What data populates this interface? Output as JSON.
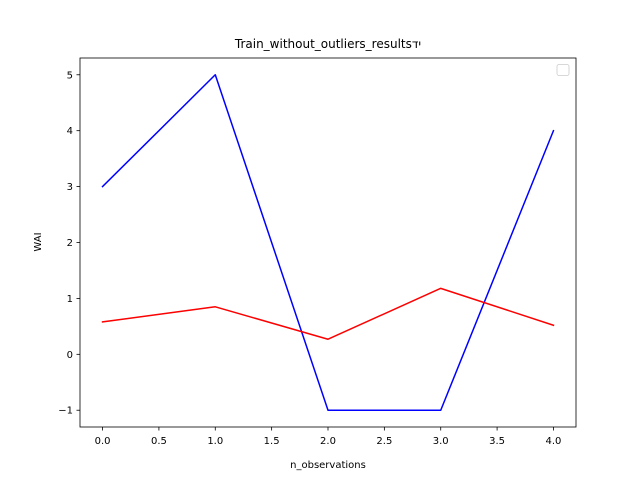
{
  "chart_data": {
    "type": "line",
    "title": "Train_without_outliers_resultsיד",
    "xlabel": "n_observations",
    "ylabel": "WAI",
    "x": [
      0,
      1,
      2,
      3,
      4
    ],
    "xlim": [
      -0.2,
      4.2
    ],
    "ylim": [
      -1.3,
      5.3
    ],
    "x_ticks": [
      0.0,
      0.5,
      1.0,
      1.5,
      2.0,
      2.5,
      3.0,
      3.5,
      4.0
    ],
    "x_tick_labels": [
      "0.0",
      "0.5",
      "1.0",
      "1.5",
      "2.0",
      "2.5",
      "3.0",
      "3.5",
      "4.0"
    ],
    "y_ticks": [
      -1,
      0,
      1,
      2,
      3,
      4,
      5
    ],
    "y_tick_labels": [
      "−1",
      "0",
      "1",
      "2",
      "3",
      "4",
      "5"
    ],
    "grid": false,
    "legend": {
      "placement": "upper-right",
      "entries": []
    },
    "series": [
      {
        "color": "#0000ff",
        "values": [
          3,
          5,
          -1,
          -1,
          4
        ]
      },
      {
        "color": "#ff0000",
        "values": [
          0.58,
          0.85,
          0.27,
          1.18,
          0.52
        ]
      }
    ]
  }
}
